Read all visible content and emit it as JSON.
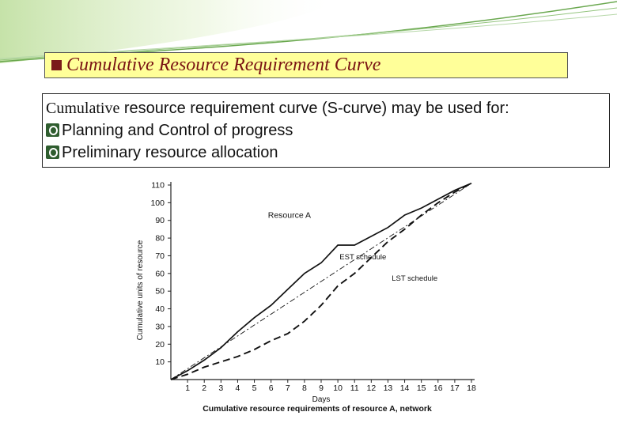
{
  "slide": {
    "title": "Cumulative Resource Requirement Curve",
    "intro_serif": "Cumulative",
    "intro_rest": " resource requirement curve (S-curve) may be used for:",
    "bullets": [
      "Planning and Control of progress",
      "Preliminary resource allocation"
    ]
  },
  "colors": {
    "title_bg": "#ffff99",
    "title_text": "#7a1414",
    "bullet": "#2f5d2f",
    "accent": "#7fbf3f"
  },
  "chart_data": {
    "type": "line",
    "title": "Resource A",
    "caption": "Cumulative resource requirements of resource A, network",
    "xlabel": "Days",
    "ylabel": "Cumulative units of resource",
    "xlim": [
      0,
      18
    ],
    "ylim": [
      0,
      110
    ],
    "xticks": [
      1,
      2,
      3,
      4,
      5,
      6,
      7,
      8,
      9,
      10,
      11,
      12,
      13,
      14,
      15,
      16,
      17,
      18
    ],
    "yticks": [
      10,
      20,
      30,
      40,
      50,
      60,
      70,
      80,
      90,
      100,
      110
    ],
    "grid": false,
    "series": [
      {
        "name": "EST schedule",
        "style": "solid",
        "x": [
          0,
          1,
          2,
          3,
          4,
          5,
          6,
          7,
          8,
          9,
          10,
          11,
          12,
          13,
          14,
          15,
          16,
          17,
          18
        ],
        "y": [
          0,
          5,
          11,
          18,
          27,
          35,
          42,
          51,
          60,
          66,
          76,
          76,
          81,
          86,
          93,
          97,
          102,
          107,
          111
        ]
      },
      {
        "name": "LST schedule",
        "style": "dashed",
        "x": [
          0,
          1,
          2,
          3,
          4,
          5,
          6,
          7,
          8,
          9,
          10,
          11,
          12,
          13,
          14,
          15,
          16,
          17,
          18
        ],
        "y": [
          0,
          3,
          7,
          10,
          13,
          17,
          22,
          26,
          33,
          42,
          53,
          60,
          69,
          78,
          85,
          93,
          100,
          106,
          111
        ]
      },
      {
        "name": "",
        "style": "dashdot",
        "x": [
          0,
          18
        ],
        "y": [
          0,
          111
        ]
      }
    ],
    "annotations": [
      {
        "text": "EST schedule",
        "x": 11.5,
        "y": 68
      },
      {
        "text": "LST schedule",
        "x": 14.6,
        "y": 56
      }
    ]
  }
}
